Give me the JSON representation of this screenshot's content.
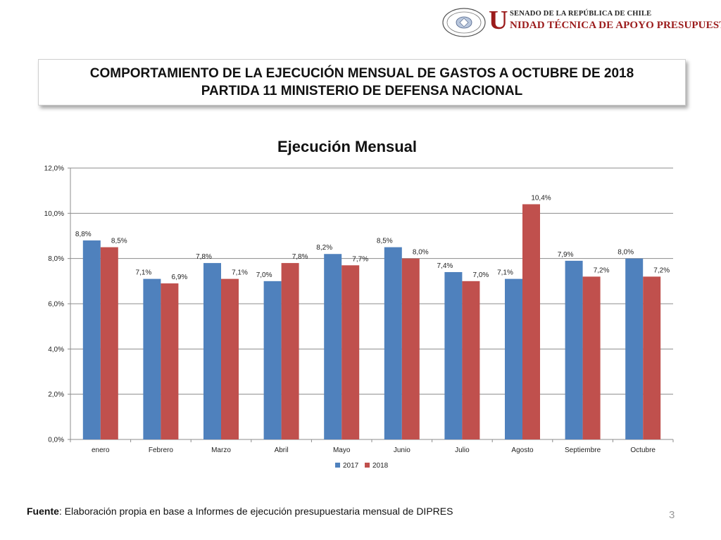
{
  "header": {
    "logo_line1": "SENADO DE LA REPÚBLICA DE CHILE",
    "logo_initial": "U",
    "logo_line2": "NIDAD TÉCNICA DE APOYO PRESUPUESTARIO",
    "seal_top": "REPÚBLICA DE CHILE",
    "seal_bottom": "SENADO"
  },
  "slide": {
    "title_line1": "COMPORTAMIENTO DE LA EJECUCIÓN MENSUAL DE GASTOS A OCTUBRE DE 2018",
    "title_line2": "PARTIDA 11 MINISTERIO DE DEFENSA NACIONAL"
  },
  "chart_data": {
    "type": "bar",
    "title": "Ejecución Mensual",
    "categories": [
      "enero",
      "Febrero",
      "Marzo",
      "Abril",
      "Mayo",
      "Junio",
      "Julio",
      "Agosto",
      "Septiembre",
      "Octubre"
    ],
    "series": [
      {
        "name": "2017",
        "color": "#4f81bd",
        "values": [
          8.8,
          7.1,
          7.8,
          7.0,
          8.2,
          8.5,
          7.4,
          7.1,
          7.9,
          8.0
        ],
        "labels": [
          "8,8%",
          "7,1%",
          "7,8%",
          "7,0%",
          "8,2%",
          "8,5%",
          "7,4%",
          "7,1%",
          "7,9%",
          "8,0%"
        ]
      },
      {
        "name": "2018",
        "color": "#c0504d",
        "values": [
          8.5,
          6.9,
          7.1,
          7.8,
          7.7,
          8.0,
          7.0,
          10.4,
          7.2,
          7.2
        ],
        "labels": [
          "8,5%",
          "6,9%",
          "7,1%",
          "7,8%",
          "7,7%",
          "8,0%",
          "7,0%",
          "10,4%",
          "7,2%",
          "7,2%"
        ]
      }
    ],
    "yticks": [
      0,
      2,
      4,
      6,
      8,
      10,
      12
    ],
    "ytick_labels": [
      "0,0%",
      "2,0%",
      "4,0%",
      "6,0%",
      "8,0%",
      "10,0%",
      "12,0%"
    ],
    "ylim": [
      0,
      12
    ],
    "xlabel": "",
    "ylabel": "",
    "grid": true,
    "legend": "bottom-center"
  },
  "footer": {
    "source_label": "Fuente",
    "source_text": ": Elaboración propia en base  a Informes de ejecución presupuestaria mensual de DIPRES",
    "page_number": "3"
  }
}
